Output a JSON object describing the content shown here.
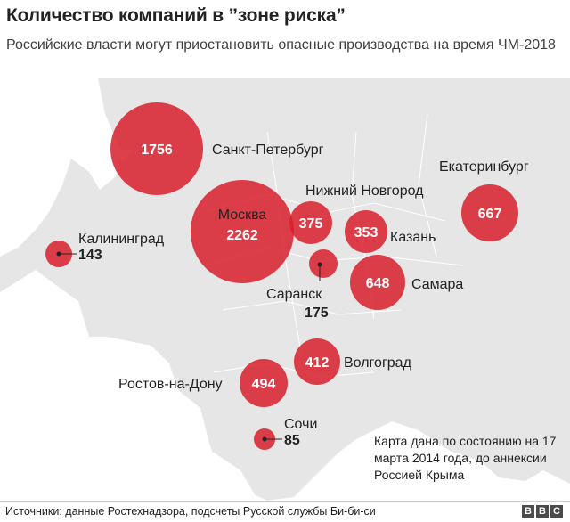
{
  "title": "Количество компаний в ”зоне риска”",
  "subtitle": "Российские власти могут приостановить опасные производства на время ЧМ-2018",
  "note": "Карта дана по состоянию на 17 марта 2014 года, до аннексии Россией Крыма",
  "source": "Источники: данные Ростехнадзора, подсчеты Русской службы Би-би-си",
  "logo": [
    "B",
    "B",
    "C"
  ],
  "colors": {
    "circle": "#d81e2c",
    "land": "#e6e6e6",
    "sea": "#ffffff",
    "border": "#ffffff"
  },
  "chart_data": {
    "type": "map-bubble",
    "points": [
      {
        "city": "Санкт-Петербург",
        "value": 1756
      },
      {
        "city": "Москва",
        "value": 2262
      },
      {
        "city": "Нижний Новгород",
        "value": 375
      },
      {
        "city": "Казань",
        "value": 353
      },
      {
        "city": "Екатеринбург",
        "value": 667
      },
      {
        "city": "Калининград",
        "value": 143
      },
      {
        "city": "Саранск",
        "value": 175
      },
      {
        "city": "Самара",
        "value": 648
      },
      {
        "city": "Волгоград",
        "value": 412
      },
      {
        "city": "Ростов-на-Дону",
        "value": 494
      },
      {
        "city": "Сочи",
        "value": 85
      }
    ]
  }
}
